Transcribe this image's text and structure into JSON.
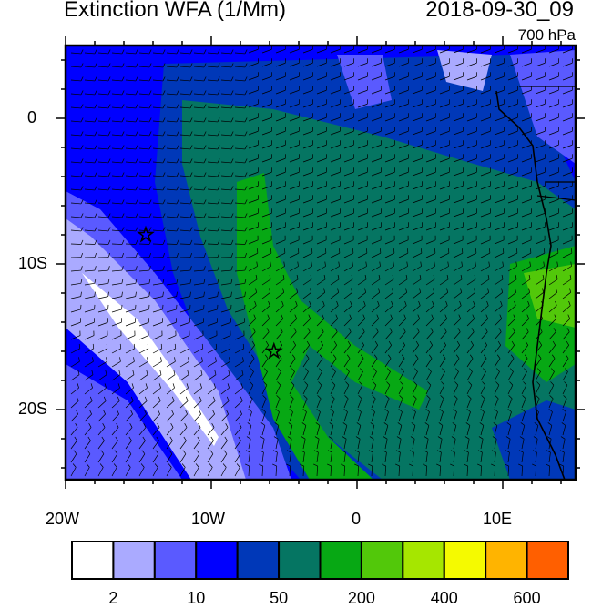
{
  "title": "Extinction WFA (1/Mm)",
  "datetime": "2018-09-30_09",
  "level": "700 hPa",
  "axes": {
    "x_ticks": [
      "20W",
      "10W",
      "0",
      "10E"
    ],
    "y_ticks": [
      "0",
      "10S",
      "20S"
    ],
    "lon_range": [
      -20,
      15
    ],
    "lat_range": [
      -25,
      5
    ]
  },
  "markers": [
    {
      "type": "star",
      "lon": -14.5,
      "lat": -8
    },
    {
      "type": "star",
      "lon": -5.7,
      "lat": -16
    }
  ],
  "colorbar": {
    "colors": [
      "#ffffff",
      "#aaaaff",
      "#5a5aff",
      "#0000ff",
      "#0038b8",
      "#057562",
      "#07a814",
      "#52c80a",
      "#a6e600",
      "#f5fa00",
      "#ffb400",
      "#ff5f00",
      "#ff0f00"
    ],
    "labels": [
      "2",
      "10",
      "50",
      "200",
      "400",
      "600"
    ]
  }
}
